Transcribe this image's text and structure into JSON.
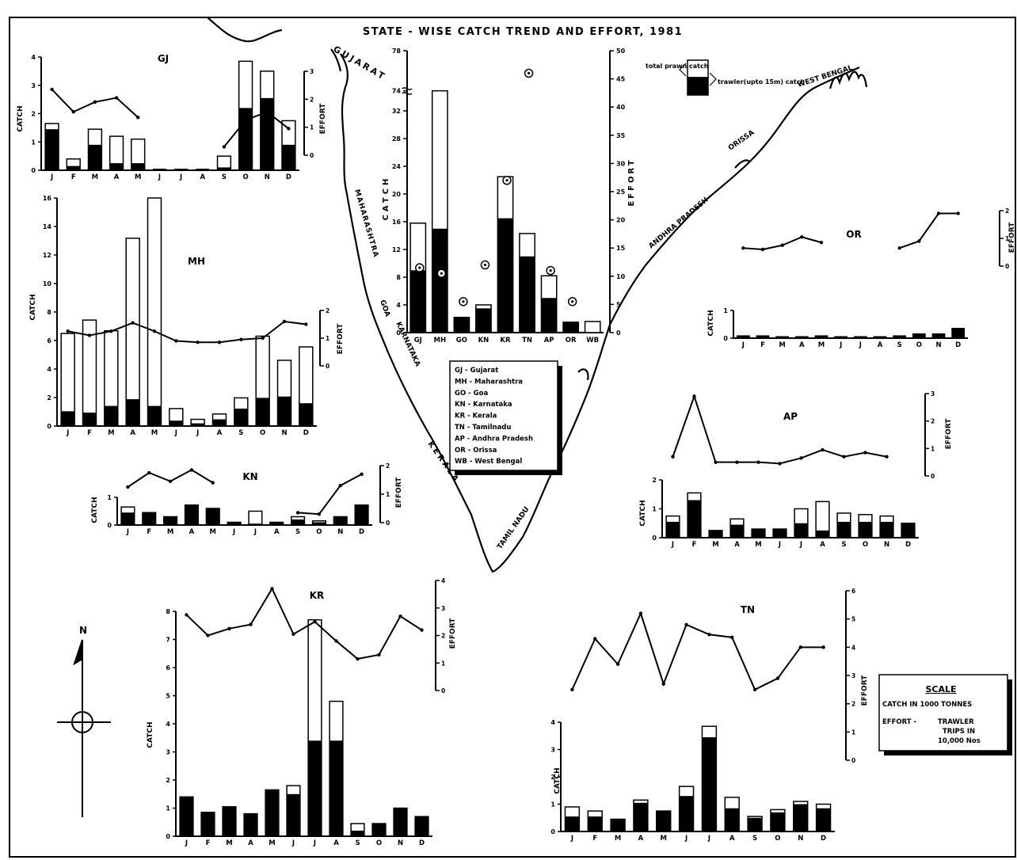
{
  "title": "STATE - WISE CATCH TREND AND EFFORT, 1981",
  "months": [
    "J",
    "F",
    "M",
    "A",
    "M",
    "J",
    "J",
    "A",
    "S",
    "O",
    "N",
    "D"
  ],
  "states_abbr": [
    "GJ",
    "MH",
    "GO",
    "KN",
    "KR",
    "TN",
    "AP",
    "OR",
    "WB"
  ],
  "labels": {
    "catch": "CATCH",
    "effort": "EFFORT"
  },
  "map_labels": [
    "GUJARAT",
    "MAHARASHTRA",
    "GOA",
    "KARNATAKA",
    "KERALA",
    "TAMIL NADU",
    "ANDHRA PRADESH",
    "ORISSA",
    "WEST BENGAL"
  ],
  "key": {
    "total_label": "total prawn catch",
    "trawler_label": "trawler(upto 15m) catch"
  },
  "state_legend": [
    "GJ - Gujarat",
    "MH - Maharashtra",
    "GO - Goa",
    "KN - Karnataka",
    "KR - Kerala",
    "TN - Tamilnadu",
    "AP - Andhra Pradesh",
    "OR - Orissa",
    "WB - West Bengal"
  ],
  "scale_box": {
    "title": "SCALE",
    "catch": "CATCH IN 1000 TONNES",
    "effort_label": "EFFORT -",
    "effort_text": [
      "TRAWLER",
      "TRIPS IN",
      "10,000 Nos"
    ]
  },
  "north_label": "N",
  "colors": {
    "ink": "#000000",
    "paper": "#ffffff"
  },
  "chart_data": [
    {
      "id": "summary",
      "type": "bar",
      "categories": [
        "GJ",
        "MH",
        "GO",
        "KN",
        "KR",
        "TN",
        "AP",
        "OR",
        "WB"
      ],
      "series": [
        {
          "name": "total prawn catch",
          "values": [
            15.8,
            74,
            2.2,
            4,
            22.5,
            14.3,
            8.2,
            1.5,
            1.6
          ]
        },
        {
          "name": "trawler(upto 15m) catch",
          "values": [
            9,
            15,
            2.2,
            3.5,
            16.5,
            11,
            5,
            1.5,
            0
          ]
        }
      ],
      "effort_values": [
        11.5,
        10.5,
        5.5,
        12,
        27,
        46,
        11,
        5.5,
        null
      ],
      "catch_ticks": [
        "0",
        "4",
        "8",
        "12",
        "16",
        "20",
        "24",
        "28",
        "32",
        "74",
        "78"
      ],
      "effort_ticks": [
        "0",
        "5",
        "10",
        "15",
        "20",
        "25",
        "30",
        "35",
        "40",
        "45",
        "50"
      ],
      "ylabel": "CATCH",
      "y2label": "EFFORT"
    },
    {
      "id": "GJ",
      "type": "bar+line",
      "label": "GJ",
      "total": [
        1.65,
        0.4,
        1.45,
        1.2,
        1.1,
        0,
        0,
        0,
        0.5,
        3.85,
        3.5,
        1.75
      ],
      "trawler": [
        1.45,
        0.15,
        0.9,
        0.25,
        0.25,
        0,
        0,
        0,
        0.1,
        2.2,
        2.55,
        0.9
      ],
      "effort": [
        2.35,
        1.55,
        1.9,
        2.05,
        1.35,
        null,
        null,
        null,
        0.3,
        1.25,
        1.55,
        0.95
      ],
      "catch_ticks": [
        "0",
        "1",
        "2",
        "3",
        "4"
      ],
      "effort_ticks": [
        "0",
        "1",
        "2",
        "3"
      ]
    },
    {
      "id": "MH",
      "type": "bar+line",
      "label": "MH",
      "total": [
        6.9,
        7.9,
        7.1,
        14,
        17,
        1.3,
        0.5,
        0.9,
        2.1,
        6.7,
        4.9,
        5.9
      ],
      "trawler": [
        1.1,
        1.0,
        1.5,
        2.0,
        1.5,
        0.4,
        0.2,
        0.5,
        1.3,
        2.1,
        2.2,
        1.7
      ],
      "effort": [
        1.25,
        1.1,
        1.25,
        1.55,
        1.25,
        0.9,
        0.85,
        0.85,
        0.95,
        1.0,
        1.6,
        1.5
      ],
      "catch_ticks": [
        "0",
        "2",
        "4",
        "6",
        "8",
        "10",
        "12",
        "14",
        "16"
      ],
      "effort_ticks": [
        "0",
        "1",
        "2"
      ]
    },
    {
      "id": "KN",
      "type": "bar+line",
      "label": "KN",
      "total": [
        0.65,
        0.45,
        0.3,
        0.72,
        0.6,
        0.1,
        0.5,
        0.1,
        0.3,
        0.15,
        0.3,
        0.72
      ],
      "trawler": [
        0.45,
        0.45,
        0.3,
        0.72,
        0.6,
        0.08,
        0.05,
        0.08,
        0.2,
        0.1,
        0.3,
        0.72
      ],
      "effort": [
        1.25,
        1.75,
        1.45,
        1.85,
        1.4,
        null,
        null,
        null,
        0.35,
        0.3,
        1.3,
        1.7
      ],
      "catch_ticks": [
        "0",
        "1"
      ],
      "effort_ticks": [
        "0",
        "1",
        "2"
      ]
    },
    {
      "id": "KR",
      "type": "bar+line",
      "label": "KR",
      "total": [
        1.4,
        0.85,
        1.05,
        0.8,
        1.65,
        1.8,
        7.7,
        4.8,
        0.45,
        0.45,
        1.0,
        0.7
      ],
      "trawler": [
        1.4,
        0.85,
        1.05,
        0.8,
        1.65,
        1.5,
        3.4,
        3.4,
        0.2,
        0.45,
        1.0,
        0.7
      ],
      "effort": [
        2.75,
        2.0,
        2.25,
        2.4,
        3.7,
        2.05,
        2.5,
        1.8,
        1.15,
        1.3,
        2.7,
        2.2
      ],
      "catch_ticks": [
        "0",
        "1",
        "2",
        "3",
        "4",
        "5",
        "6",
        "7",
        "8"
      ],
      "effort_ticks": [
        "0",
        "1",
        "2",
        "3",
        "4"
      ]
    },
    {
      "id": "OR",
      "type": "bar+line",
      "label": "OR",
      "total": [
        0.08,
        0.08,
        0.05,
        0.05,
        0.08,
        0.05,
        0.05,
        0.05,
        0.08,
        0.15,
        0.15,
        0.35
      ],
      "trawler": [
        0.08,
        0.08,
        0.05,
        0.05,
        0.08,
        0.05,
        0.05,
        0.05,
        0.08,
        0.15,
        0.15,
        0.35
      ],
      "effort": [
        0.65,
        0.6,
        0.75,
        1.05,
        0.85,
        null,
        null,
        null,
        0.65,
        0.9,
        1.9,
        1.9
      ],
      "catch_ticks": [
        "0",
        "1"
      ],
      "effort_ticks": [
        "0",
        "1",
        "2"
      ]
    },
    {
      "id": "AP",
      "type": "bar+line",
      "label": "AP",
      "total": [
        0.75,
        1.55,
        0.25,
        0.65,
        0.3,
        0.3,
        1.0,
        1.25,
        0.85,
        0.8,
        0.75,
        0.5
      ],
      "trawler": [
        0.55,
        1.3,
        0.25,
        0.45,
        0.3,
        0.3,
        0.5,
        0.25,
        0.55,
        0.55,
        0.55,
        0.5
      ],
      "effort": [
        0.7,
        2.9,
        0.5,
        0.5,
        0.5,
        0.45,
        0.65,
        0.95,
        0.7,
        0.85,
        0.7,
        null
      ],
      "catch_ticks": [
        "0",
        "1",
        "2"
      ],
      "effort_ticks": [
        "0",
        "1",
        "2",
        "3"
      ]
    },
    {
      "id": "TN",
      "type": "bar+line",
      "label": "TN",
      "total": [
        0.9,
        0.75,
        0.45,
        1.15,
        0.75,
        1.65,
        3.85,
        1.25,
        0.55,
        0.8,
        1.1,
        1.0
      ],
      "trawler": [
        0.55,
        0.55,
        0.45,
        1.05,
        0.75,
        1.3,
        3.45,
        0.85,
        0.5,
        0.7,
        1.0,
        0.85
      ],
      "effort": [
        2.5,
        4.3,
        3.4,
        5.2,
        2.7,
        4.8,
        4.45,
        4.35,
        2.5,
        2.9,
        4.0,
        4.0
      ],
      "catch_ticks": [
        "0",
        "1",
        "2",
        "3",
        "4"
      ],
      "effort_ticks": [
        "0",
        "1",
        "2",
        "3",
        "4",
        "5",
        "6"
      ]
    }
  ]
}
